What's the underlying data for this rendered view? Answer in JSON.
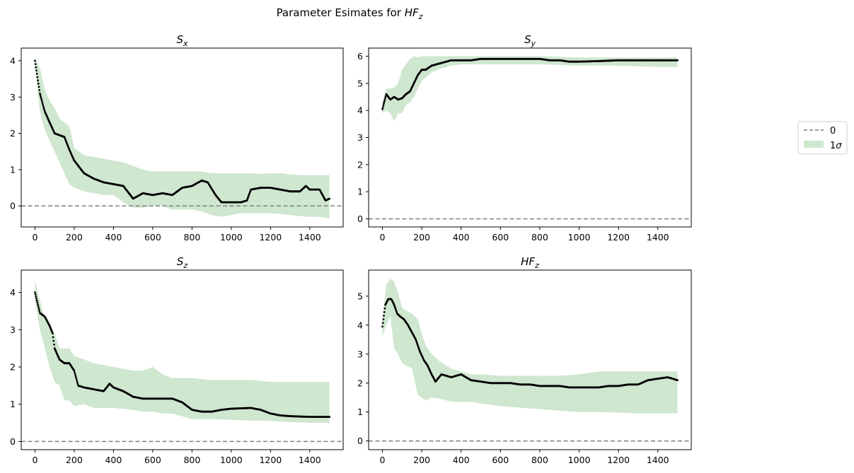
{
  "figure": {
    "suptitle_prefix": "Parameter Esimates for ",
    "suptitle_symbol": "HF",
    "suptitle_sub": "z"
  },
  "legend": {
    "placement": "center-right",
    "items": [
      {
        "label": "0",
        "style": "dashed-line",
        "color": "#808080"
      },
      {
        "label": "1",
        "label_symbol": "σ",
        "style": "patch",
        "color": "#cfe6cf"
      }
    ]
  },
  "colors": {
    "band": "#cfe6cf",
    "points": "#000000",
    "zero_line": "#808080"
  },
  "chart_data": [
    {
      "type": "scatter",
      "title_main": "S",
      "title_sub": "x",
      "xlim": [
        -70,
        1570
      ],
      "ylim": [
        -0.58,
        4.35
      ],
      "xticks": [
        0,
        200,
        400,
        600,
        800,
        1000,
        1200,
        1400
      ],
      "yticks": [
        0,
        1,
        2,
        3,
        4
      ],
      "zero_line": 0,
      "series": [
        {
          "component": "estimate",
          "x": [
            0,
            25,
            50,
            75,
            100,
            125,
            150,
            175,
            200,
            250,
            300,
            350,
            400,
            450,
            500,
            550,
            600,
            650,
            700,
            750,
            800,
            850,
            880,
            920,
            950,
            1000,
            1050,
            1080,
            1100,
            1150,
            1200,
            1250,
            1300,
            1350,
            1380,
            1400,
            1450,
            1480,
            1500
          ],
          "y": [
            4.0,
            3.1,
            2.6,
            2.3,
            2.0,
            1.95,
            1.9,
            1.55,
            1.25,
            0.9,
            0.75,
            0.65,
            0.6,
            0.55,
            0.2,
            0.35,
            0.3,
            0.35,
            0.3,
            0.5,
            0.55,
            0.7,
            0.65,
            0.3,
            0.1,
            0.1,
            0.1,
            0.15,
            0.45,
            0.5,
            0.5,
            0.45,
            0.4,
            0.4,
            0.55,
            0.45,
            0.45,
            0.15,
            0.2
          ]
        },
        {
          "component": "upper",
          "x": [
            0,
            25,
            50,
            75,
            100,
            125,
            150,
            175,
            200,
            250,
            300,
            350,
            400,
            450,
            500,
            550,
            600,
            650,
            700,
            750,
            800,
            850,
            900,
            950,
            1000,
            1050,
            1100,
            1150,
            1200,
            1250,
            1300,
            1350,
            1400,
            1450,
            1500
          ],
          "y": [
            4.1,
            3.8,
            3.2,
            2.9,
            2.7,
            2.4,
            2.3,
            2.2,
            1.6,
            1.4,
            1.35,
            1.3,
            1.25,
            1.2,
            1.1,
            1.0,
            0.95,
            0.95,
            0.95,
            0.95,
            0.95,
            0.95,
            0.9,
            0.9,
            0.9,
            0.9,
            0.9,
            0.88,
            0.9,
            0.9,
            0.87,
            0.85,
            0.85,
            0.85,
            0.85
          ]
        },
        {
          "component": "lower",
          "x": [
            0,
            25,
            50,
            75,
            100,
            125,
            150,
            175,
            200,
            250,
            300,
            350,
            400,
            450,
            500,
            550,
            600,
            650,
            700,
            750,
            800,
            850,
            900,
            950,
            1000,
            1050,
            1100,
            1150,
            1200,
            1250,
            1300,
            1350,
            1400,
            1450,
            1500
          ],
          "y": [
            3.9,
            2.6,
            2.1,
            1.8,
            1.5,
            1.2,
            0.9,
            0.6,
            0.5,
            0.4,
            0.35,
            0.3,
            0.3,
            0.1,
            -0.05,
            -0.05,
            0.0,
            0.0,
            -0.1,
            -0.1,
            -0.1,
            -0.15,
            -0.25,
            -0.3,
            -0.25,
            -0.2,
            -0.2,
            -0.2,
            -0.2,
            -0.22,
            -0.25,
            -0.28,
            -0.3,
            -0.3,
            -0.35
          ]
        }
      ]
    },
    {
      "type": "scatter",
      "title_main": "S",
      "title_sub": "y",
      "xlim": [
        -70,
        1570
      ],
      "ylim": [
        -0.3,
        6.3
      ],
      "xticks": [
        0,
        200,
        400,
        600,
        800,
        1000,
        1200,
        1400
      ],
      "yticks": [
        0,
        1,
        2,
        3,
        4,
        5,
        6
      ],
      "zero_line": 0,
      "series": [
        {
          "component": "estimate",
          "x": [
            0,
            20,
            40,
            60,
            80,
            100,
            120,
            140,
            160,
            180,
            200,
            220,
            250,
            300,
            350,
            400,
            450,
            500,
            600,
            700,
            800,
            850,
            900,
            950,
            1000,
            1100,
            1200,
            1300,
            1400,
            1450,
            1500
          ],
          "y": [
            4.05,
            4.6,
            4.4,
            4.5,
            4.4,
            4.45,
            4.6,
            4.7,
            5.0,
            5.3,
            5.5,
            5.5,
            5.65,
            5.75,
            5.85,
            5.85,
            5.85,
            5.9,
            5.9,
            5.9,
            5.9,
            5.85,
            5.85,
            5.8,
            5.8,
            5.82,
            5.85,
            5.85,
            5.85,
            5.85,
            5.85
          ]
        },
        {
          "component": "upper",
          "x": [
            0,
            20,
            40,
            60,
            80,
            100,
            120,
            140,
            160,
            180,
            200,
            250,
            300,
            350,
            400,
            500,
            600,
            800,
            1000,
            1200,
            1400,
            1500
          ],
          "y": [
            4.3,
            4.8,
            4.8,
            4.85,
            5.0,
            5.5,
            5.7,
            5.9,
            6.0,
            5.95,
            6.0,
            6.0,
            6.0,
            6.0,
            6.0,
            6.0,
            6.0,
            6.0,
            5.95,
            5.95,
            5.95,
            5.95
          ]
        },
        {
          "component": "lower",
          "x": [
            0,
            20,
            40,
            60,
            80,
            100,
            120,
            140,
            160,
            180,
            200,
            250,
            300,
            350,
            400,
            500,
            600,
            800,
            1000,
            1200,
            1400,
            1500
          ],
          "y": [
            3.9,
            4.0,
            3.9,
            3.6,
            3.9,
            3.9,
            4.2,
            4.3,
            4.5,
            4.8,
            5.1,
            5.4,
            5.55,
            5.65,
            5.7,
            5.7,
            5.7,
            5.7,
            5.65,
            5.65,
            5.6,
            5.6
          ]
        }
      ]
    },
    {
      "type": "scatter",
      "title_main": "S",
      "title_sub": "z",
      "xlim": [
        -70,
        1570
      ],
      "ylim": [
        -0.22,
        4.6
      ],
      "xticks": [
        0,
        200,
        400,
        600,
        800,
        1000,
        1200,
        1400
      ],
      "yticks": [
        0,
        1,
        2,
        3,
        4
      ],
      "zero_line": 0,
      "series": [
        {
          "component": "estimate",
          "x": [
            0,
            25,
            50,
            75,
            90,
            100,
            125,
            150,
            175,
            200,
            220,
            250,
            300,
            350,
            380,
            400,
            450,
            500,
            550,
            600,
            650,
            700,
            750,
            800,
            850,
            900,
            950,
            1000,
            1100,
            1150,
            1200,
            1250,
            1300,
            1400,
            1500
          ],
          "y": [
            4.0,
            3.45,
            3.35,
            3.1,
            2.9,
            2.5,
            2.2,
            2.1,
            2.1,
            1.9,
            1.5,
            1.45,
            1.4,
            1.35,
            1.55,
            1.45,
            1.35,
            1.2,
            1.15,
            1.15,
            1.15,
            1.15,
            1.05,
            0.85,
            0.8,
            0.8,
            0.85,
            0.88,
            0.9,
            0.85,
            0.75,
            0.7,
            0.68,
            0.66,
            0.66
          ]
        },
        {
          "component": "upper",
          "x": [
            0,
            25,
            50,
            75,
            100,
            125,
            150,
            175,
            200,
            250,
            300,
            400,
            500,
            550,
            600,
            650,
            700,
            800,
            900,
            1000,
            1100,
            1200,
            1300,
            1400,
            1500
          ],
          "y": [
            4.3,
            3.8,
            3.3,
            3.2,
            2.9,
            2.5,
            2.5,
            2.5,
            2.3,
            2.2,
            2.1,
            2.0,
            1.9,
            1.9,
            2.0,
            1.8,
            1.7,
            1.7,
            1.65,
            1.65,
            1.65,
            1.6,
            1.6,
            1.6,
            1.6
          ]
        },
        {
          "component": "lower",
          "x": [
            0,
            25,
            50,
            75,
            100,
            125,
            150,
            175,
            200,
            250,
            300,
            400,
            500,
            550,
            600,
            650,
            700,
            800,
            900,
            1000,
            1100,
            1200,
            1300,
            1400,
            1500
          ],
          "y": [
            3.8,
            3.0,
            2.5,
            2.0,
            1.6,
            1.5,
            1.1,
            1.1,
            0.95,
            1.0,
            0.9,
            0.9,
            0.85,
            0.8,
            0.8,
            0.75,
            0.75,
            0.6,
            0.6,
            0.58,
            0.56,
            0.55,
            0.52,
            0.5,
            0.5
          ]
        }
      ]
    },
    {
      "type": "scatter",
      "title_main": "HF",
      "title_sub": "z",
      "xlim": [
        -70,
        1570
      ],
      "ylim": [
        -0.3,
        5.9
      ],
      "xticks": [
        0,
        200,
        400,
        600,
        800,
        1000,
        1200,
        1400
      ],
      "yticks": [
        0,
        1,
        2,
        3,
        4,
        5
      ],
      "zero_line": 0,
      "series": [
        {
          "component": "estimate",
          "x": [
            0,
            15,
            30,
            45,
            60,
            75,
            90,
            110,
            130,
            150,
            170,
            190,
            210,
            230,
            250,
            270,
            300,
            350,
            400,
            450,
            500,
            550,
            600,
            650,
            700,
            750,
            800,
            850,
            900,
            950,
            1000,
            1050,
            1100,
            1150,
            1200,
            1250,
            1300,
            1350,
            1400,
            1450,
            1500
          ],
          "y": [
            3.95,
            4.7,
            4.9,
            4.9,
            4.7,
            4.4,
            4.3,
            4.2,
            4.0,
            3.75,
            3.5,
            3.1,
            2.8,
            2.6,
            2.3,
            2.05,
            2.3,
            2.2,
            2.3,
            2.1,
            2.05,
            2.0,
            2.0,
            2.0,
            1.95,
            1.95,
            1.9,
            1.9,
            1.9,
            1.85,
            1.85,
            1.85,
            1.85,
            1.9,
            1.9,
            1.95,
            1.95,
            2.1,
            2.15,
            2.2,
            2.1
          ]
        },
        {
          "component": "upper",
          "x": [
            0,
            20,
            40,
            60,
            80,
            100,
            120,
            150,
            180,
            200,
            220,
            250,
            300,
            350,
            400,
            450,
            500,
            600,
            700,
            800,
            900,
            1000,
            1100,
            1200,
            1300,
            1400,
            1500
          ],
          "y": [
            4.2,
            5.4,
            5.6,
            5.5,
            5.1,
            4.6,
            4.5,
            4.4,
            4.2,
            3.7,
            3.3,
            3.0,
            2.7,
            2.5,
            2.4,
            2.3,
            2.3,
            2.25,
            2.25,
            2.25,
            2.25,
            2.3,
            2.4,
            2.4,
            2.4,
            2.4,
            2.4
          ]
        },
        {
          "component": "lower",
          "x": [
            0,
            20,
            40,
            60,
            80,
            100,
            120,
            150,
            180,
            200,
            220,
            250,
            300,
            350,
            400,
            450,
            500,
            600,
            700,
            800,
            900,
            1000,
            1100,
            1200,
            1300,
            1400,
            1500
          ],
          "y": [
            3.6,
            4.0,
            4.3,
            3.2,
            3.0,
            2.7,
            2.6,
            2.5,
            1.6,
            1.5,
            1.4,
            1.5,
            1.45,
            1.35,
            1.35,
            1.35,
            1.3,
            1.2,
            1.15,
            1.1,
            1.05,
            1.0,
            1.0,
            0.98,
            0.95,
            0.95,
            0.95
          ]
        }
      ]
    }
  ]
}
